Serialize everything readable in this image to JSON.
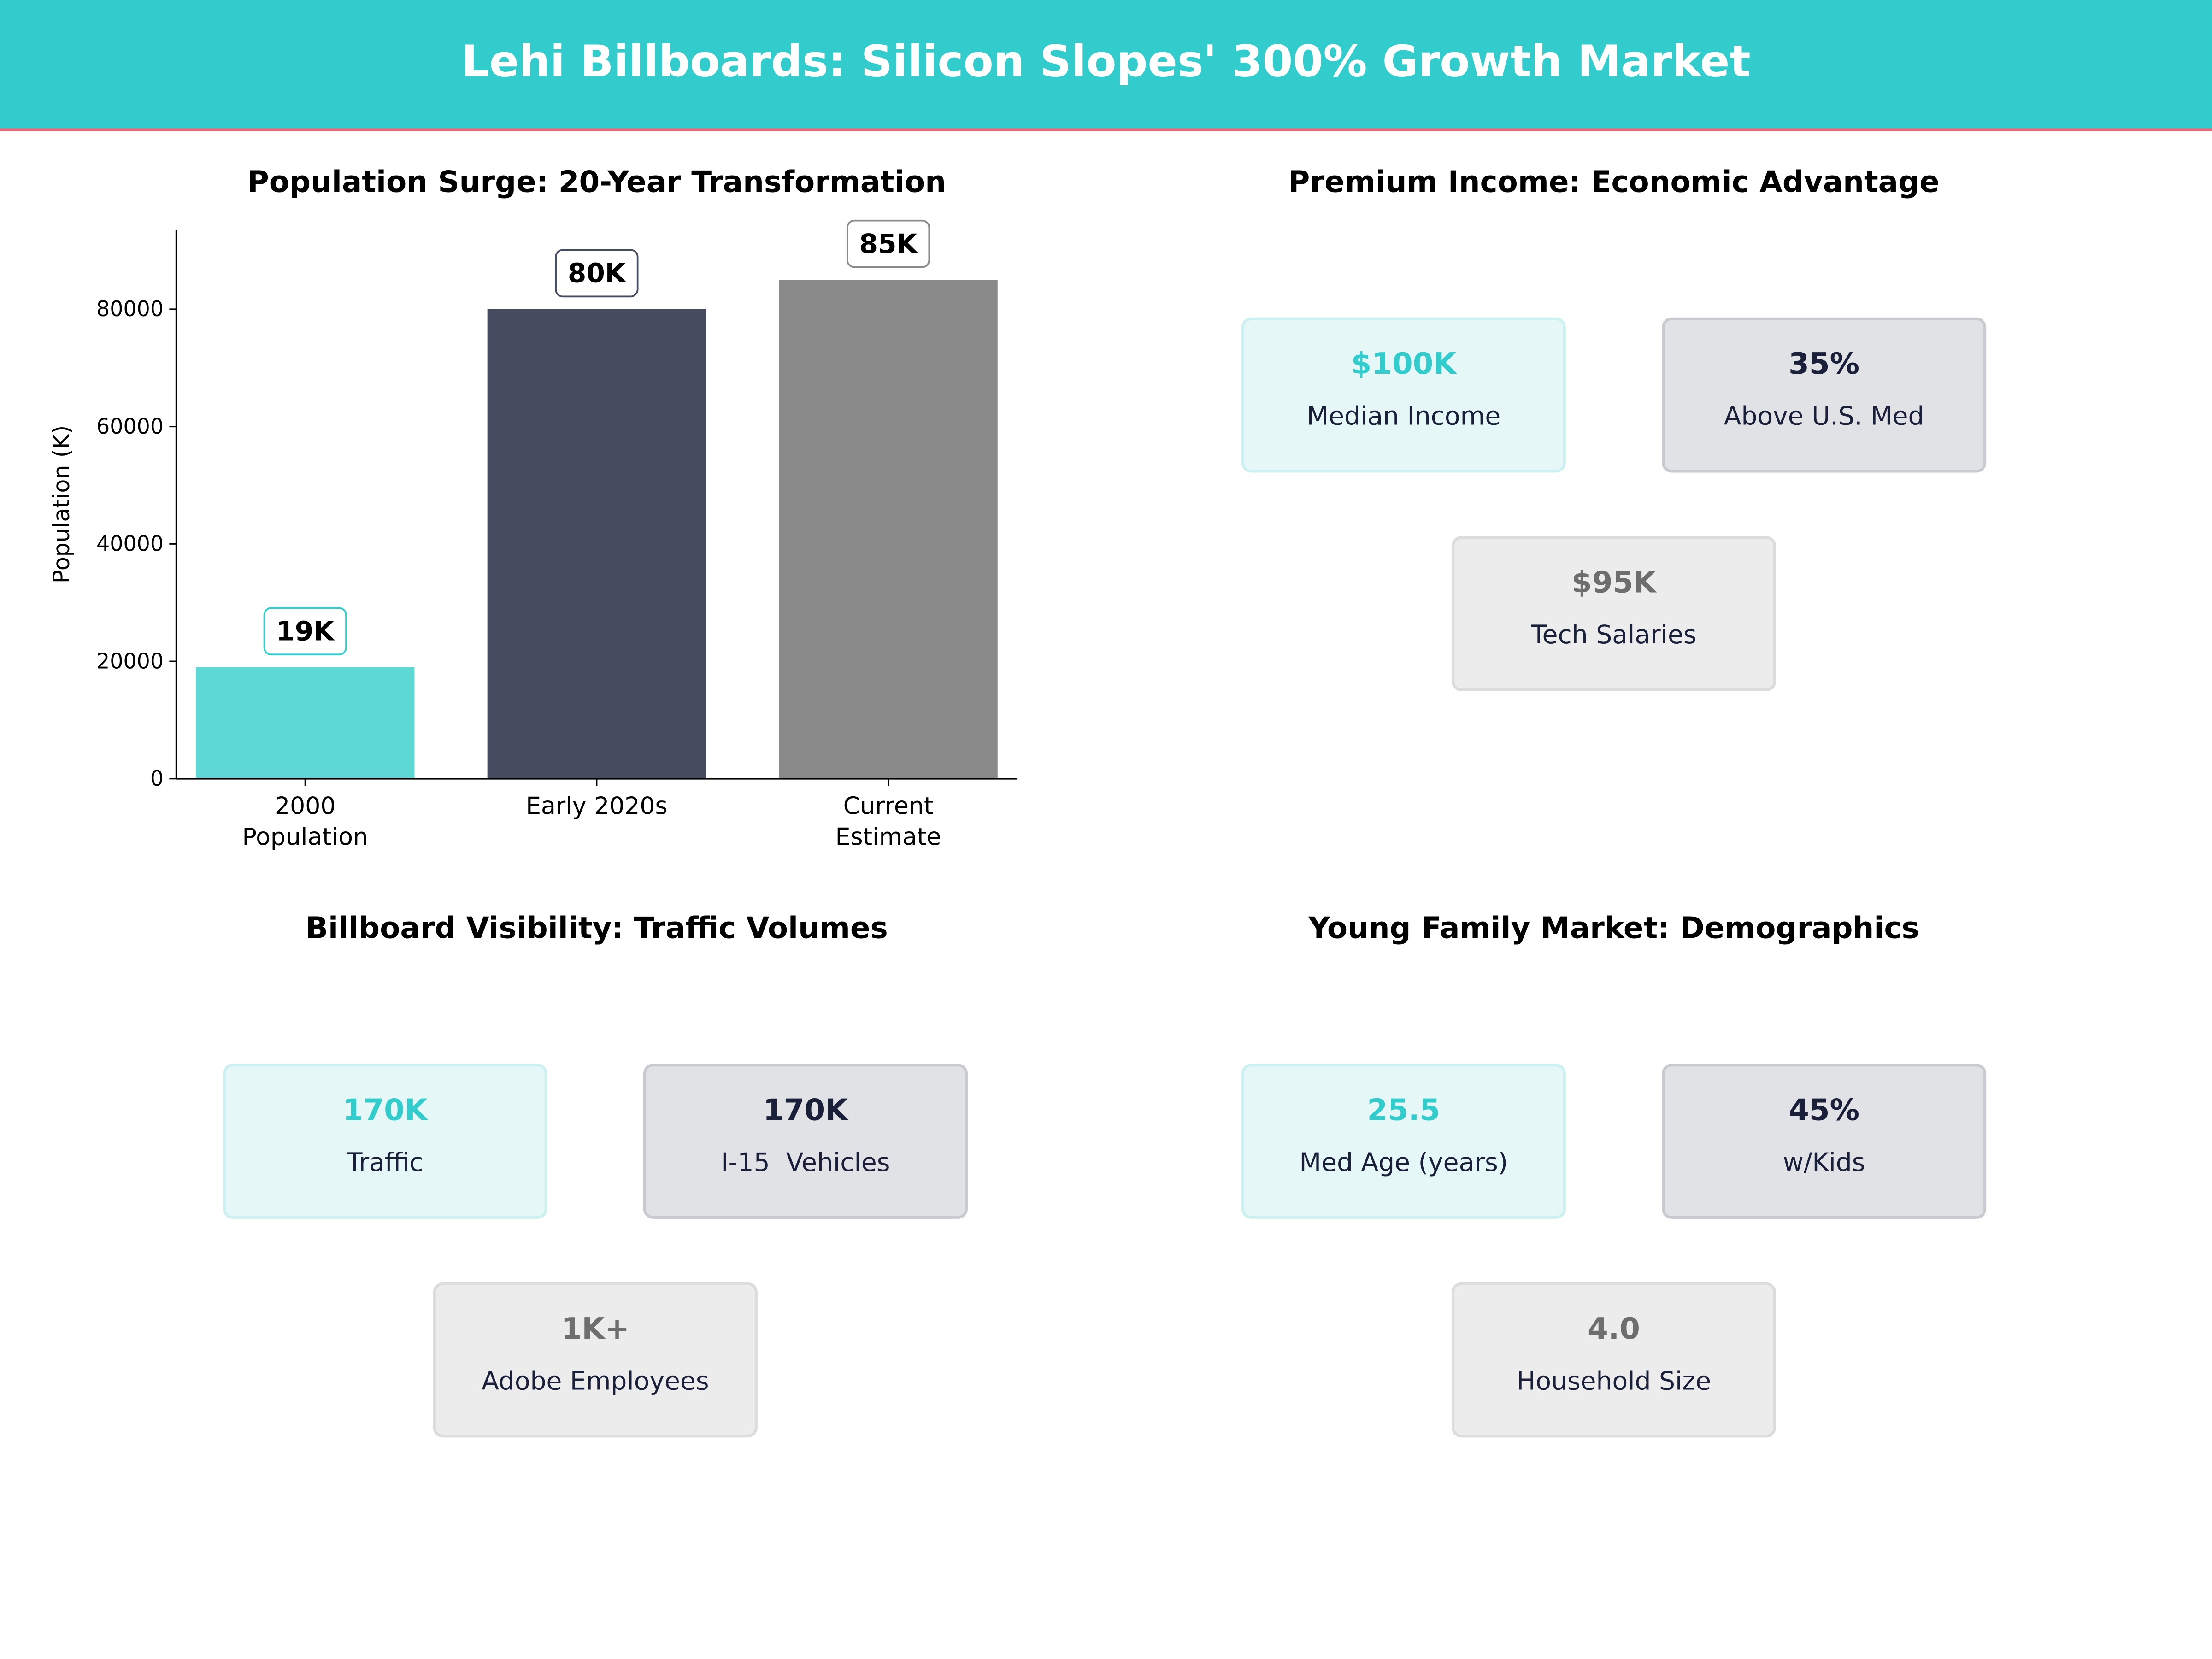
{
  "header": {
    "title": "Lehi Billboards: Silicon Slopes' 300% Growth Market",
    "background": "#33CCCC",
    "underline": "#ee6677"
  },
  "chart_data": {
    "type": "bar",
    "title": "Population Surge: 20-Year Transformation",
    "categories": [
      "2000\nPopulation",
      "Early 2020s",
      "Current\nEstimate"
    ],
    "values": [
      19000,
      80000,
      85000
    ],
    "data_labels": [
      "19K",
      "80K",
      "85K"
    ],
    "colors": [
      "#5DD8D4",
      "#464B60",
      "#8A8A8A"
    ],
    "label_border_colors": [
      "#33CCCC",
      "#464B60",
      "#8A8A8A"
    ],
    "xlabel": "",
    "ylabel": "Population (K)",
    "ylim": [
      0,
      93500
    ],
    "yticks": [
      0,
      20000,
      40000,
      60000,
      80000
    ],
    "grid": false
  },
  "panels": [
    {
      "title": "Premium Income: Economic Advantage",
      "cards": [
        {
          "value": "$100K",
          "label": "Median Income"
        },
        {
          "value": "35%",
          "label": "Above U.S. Med"
        },
        {
          "value": "$95K",
          "label": "Tech Salaries"
        }
      ]
    },
    {
      "title": "Billboard Visibility: Traffic Volumes",
      "cards": [
        {
          "value": "170K",
          "label": "Traffic"
        },
        {
          "value": "170K",
          "label": "I-15  Vehicles"
        },
        {
          "value": "1K+",
          "label": "Adobe Employees"
        }
      ]
    },
    {
      "title": "Young Family Market: Demographics",
      "cards": [
        {
          "value": "25.5",
          "label": "Med Age (years)"
        },
        {
          "value": "45%",
          "label": "w/Kids"
        },
        {
          "value": "4.0",
          "label": "Household Size"
        }
      ]
    }
  ]
}
